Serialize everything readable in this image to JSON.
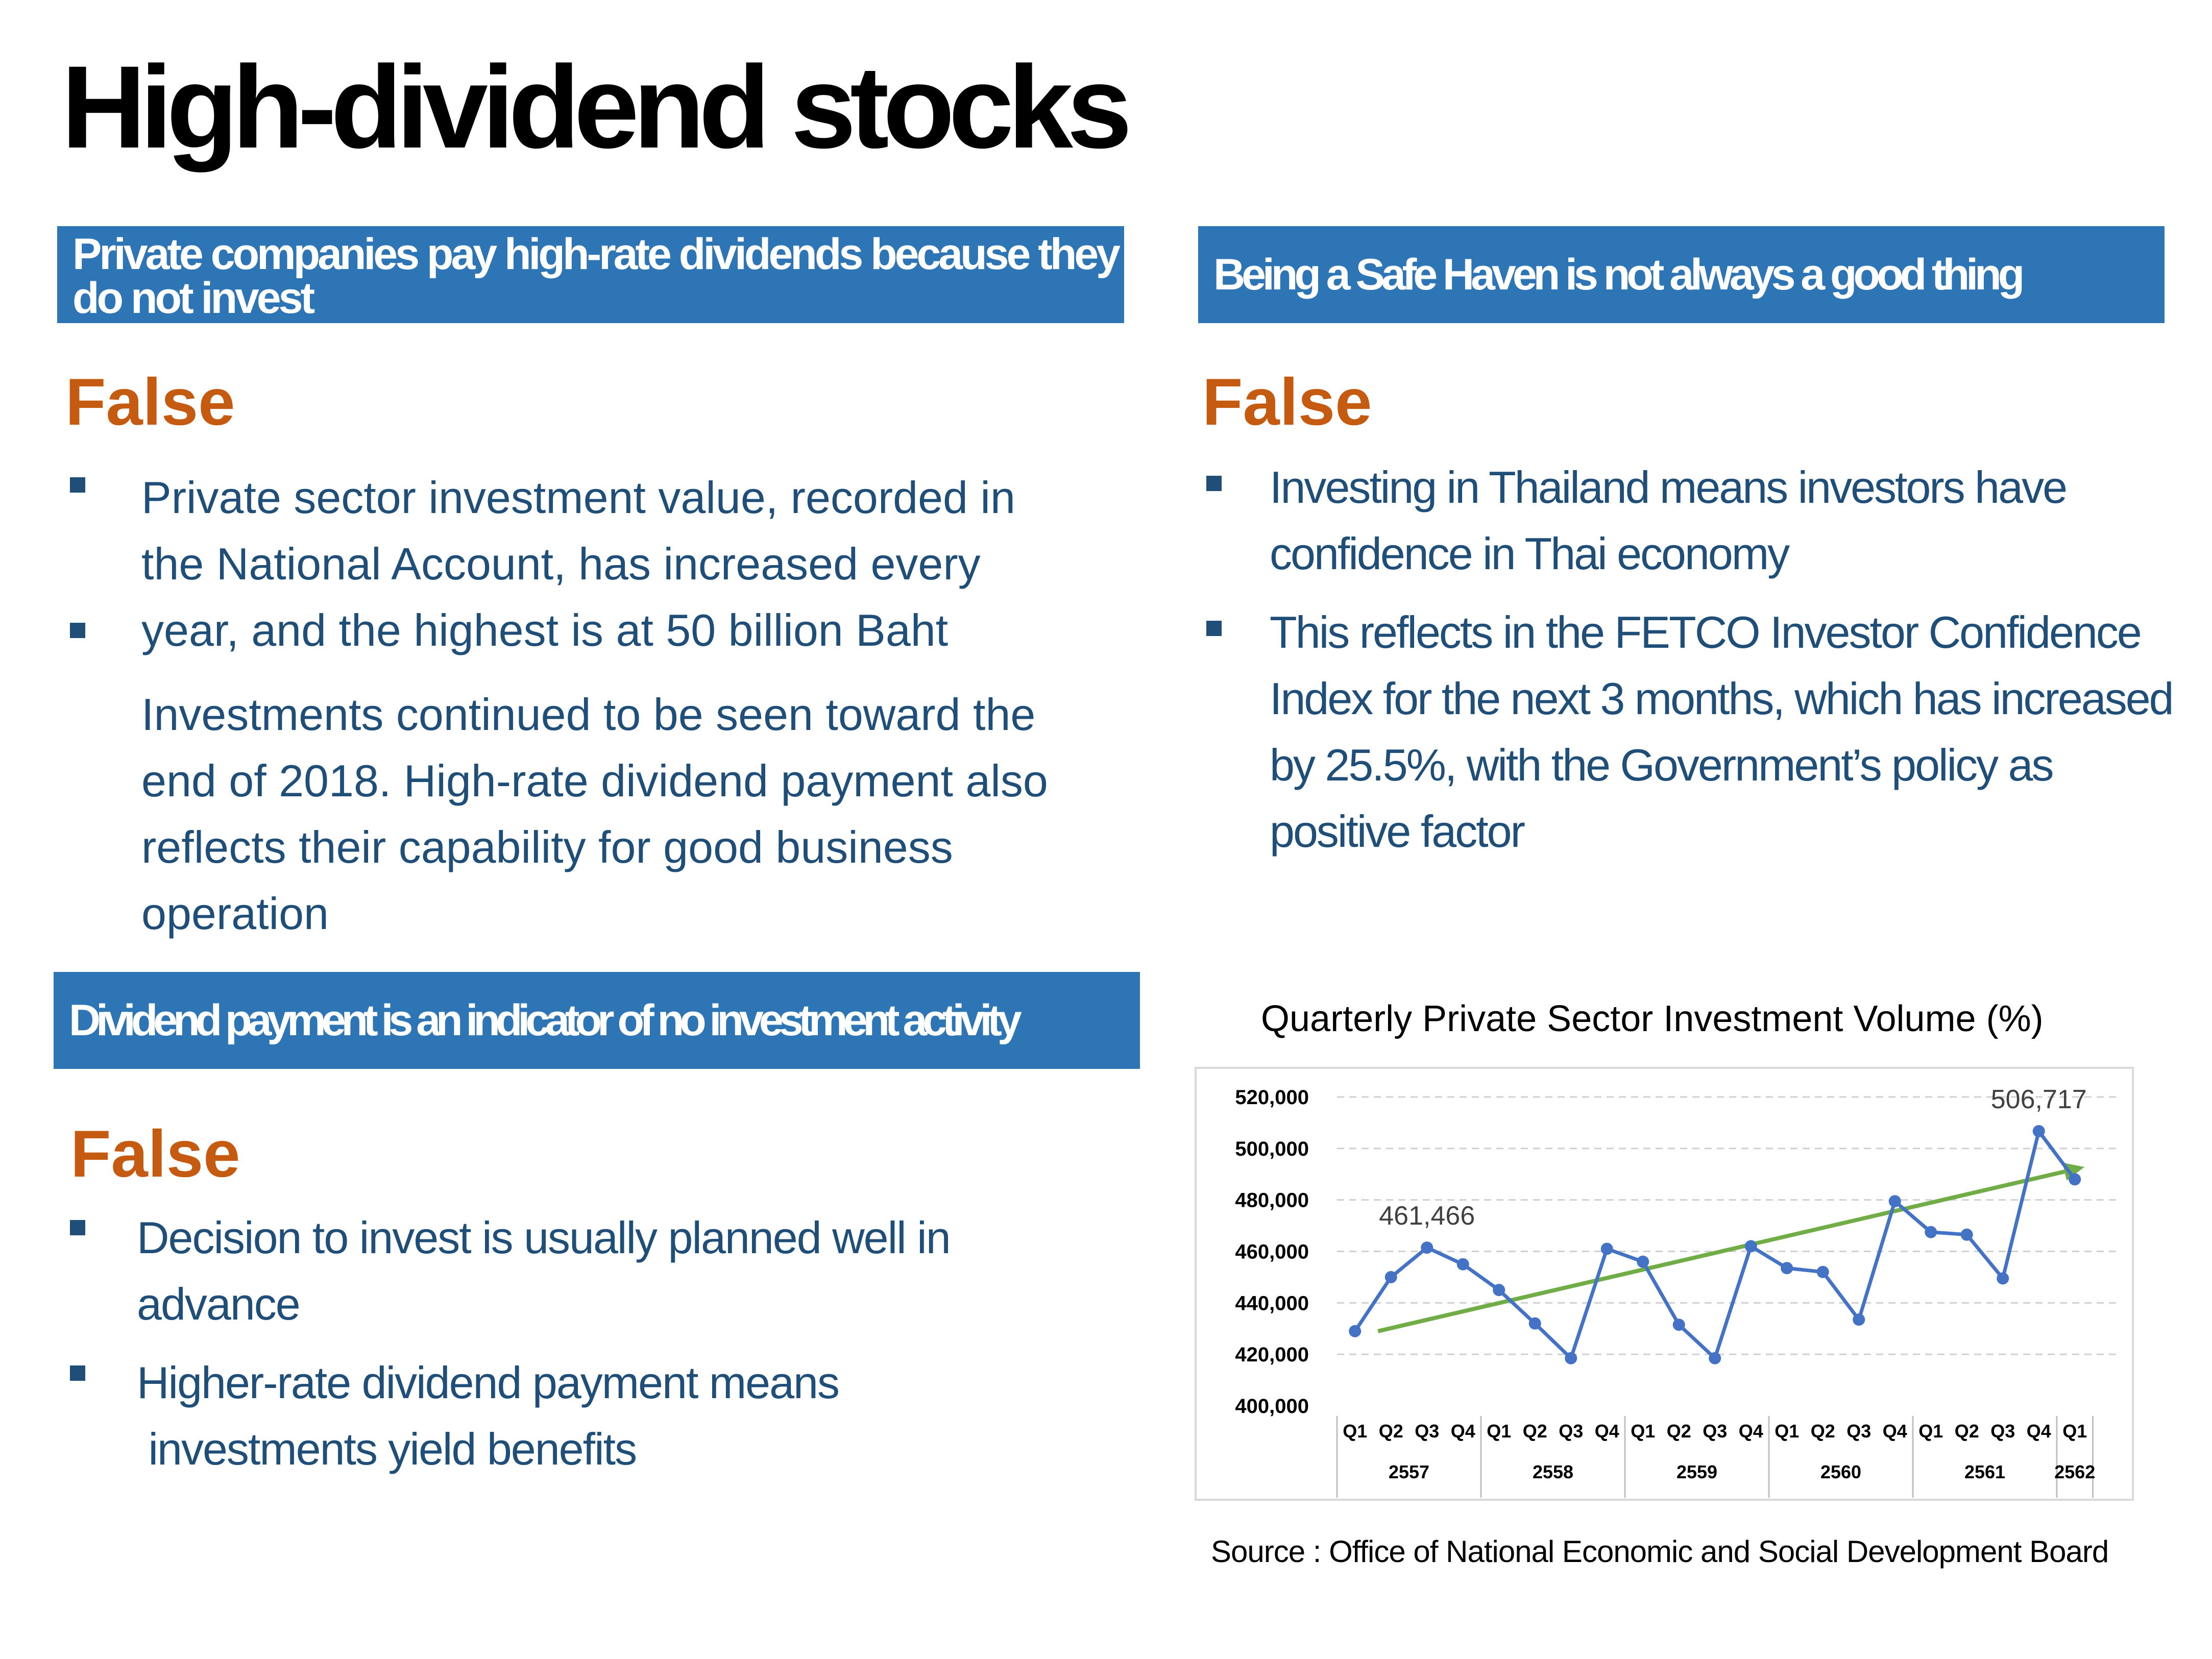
{
  "title": "High-dividend stocks",
  "panel1": {
    "header": "Private companies pay high-rate dividends because they do not invest",
    "verdict": "False",
    "lines": [
      "Private sector investment value, recorded in",
      "the National Account, has increased every",
      "year, and the highest is at 50 billion Baht",
      "Investments continued to be seen toward the",
      "end of 2018. High-rate dividend payment also",
      "reflects their capability for good business",
      "operation"
    ]
  },
  "panel2": {
    "header": "Being a Safe Haven is not always a good thing",
    "verdict": "False",
    "bullet1": [
      "Investing in Thailand means investors have",
      "confidence in Thai economy"
    ],
    "bullet2": [
      "This reflects in the FETCO Investor Confidence",
      "Index for the next 3 months, which has increased",
      "by 25.5%, with the Government’s policy as",
      "positive factor"
    ]
  },
  "panel3": {
    "header": "Dividend payment is an indicator of no investment activity",
    "verdict": "False",
    "bullet1": [
      "Decision to invest is usually planned well in",
      "advance"
    ],
    "bullet2": [
      "Higher-rate dividend payment means",
      " investments yield benefits"
    ]
  },
  "chart_data": {
    "type": "line",
    "title": "Quarterly Private Sector Investment Volume (%)",
    "x": [
      "Q1",
      "Q2",
      "Q3",
      "Q4",
      "Q1",
      "Q2",
      "Q3",
      "Q4",
      "Q1",
      "Q2",
      "Q3",
      "Q4",
      "Q1",
      "Q2",
      "Q3",
      "Q4",
      "Q1",
      "Q2",
      "Q3",
      "Q4",
      "Q1"
    ],
    "groups": [
      {
        "label": "2557",
        "count": 4
      },
      {
        "label": "2558",
        "count": 4
      },
      {
        "label": "2559",
        "count": 4
      },
      {
        "label": "2560",
        "count": 4
      },
      {
        "label": "2561",
        "count": 4
      },
      {
        "label": "2562",
        "count": 1
      }
    ],
    "series": [
      {
        "values": [
          429000,
          450000,
          461466,
          455000,
          445000,
          432000,
          418500,
          461000,
          456000,
          431500,
          418500,
          462000,
          453500,
          452000,
          433500,
          479500,
          467500,
          466500,
          449500,
          506717,
          488000
        ],
        "color": "#4472c4"
      }
    ],
    "trend": {
      "from": 429000,
      "to": 491000,
      "color": "#70ad47"
    },
    "annotations": [
      {
        "index": 2,
        "text": "461,466"
      },
      {
        "index": 19,
        "text": "506,717"
      }
    ],
    "yticks": [
      "400,000",
      "420,000",
      "440,000",
      "460,000",
      "480,000",
      "500,000",
      "520,000"
    ],
    "ylim": [
      400000,
      520000
    ],
    "grid": true,
    "source": "Source : Office of National Economic and Social Development Board"
  }
}
